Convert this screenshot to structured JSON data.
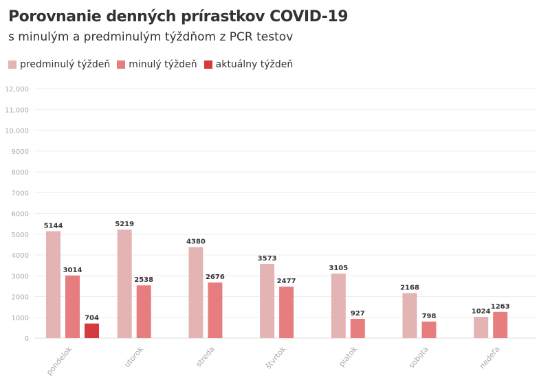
{
  "chart_data": {
    "type": "bar",
    "title": "Porovnanie denných prírastkov COVID-19",
    "subtitle": "s minulým a predminulým týždňom z PCR testov",
    "categories": [
      "pondelok",
      "utorok",
      "streda",
      "štvrtok",
      "piatok",
      "sobota",
      "nedeľa"
    ],
    "series": [
      {
        "name": "predminulý týždeň",
        "color": "#e4b3b3",
        "values": [
          5144,
          5219,
          4380,
          3573,
          3105,
          2168,
          1024
        ]
      },
      {
        "name": "minulý týždeň",
        "color": "#e87d80",
        "values": [
          3014,
          2538,
          2676,
          2477,
          927,
          798,
          1263
        ]
      },
      {
        "name": "aktuálny týždeň",
        "color": "#d43a3e",
        "values": [
          704,
          null,
          null,
          null,
          null,
          null,
          null
        ]
      }
    ],
    "yticks": [
      "0",
      "1000",
      "2000",
      "3000",
      "4000",
      "5000",
      "6000",
      "7000",
      "8000",
      "9000",
      "10,000",
      "11,000",
      "12,000"
    ],
    "ylim": [
      0,
      12000
    ],
    "grid": true,
    "legend_position": "top-left"
  }
}
